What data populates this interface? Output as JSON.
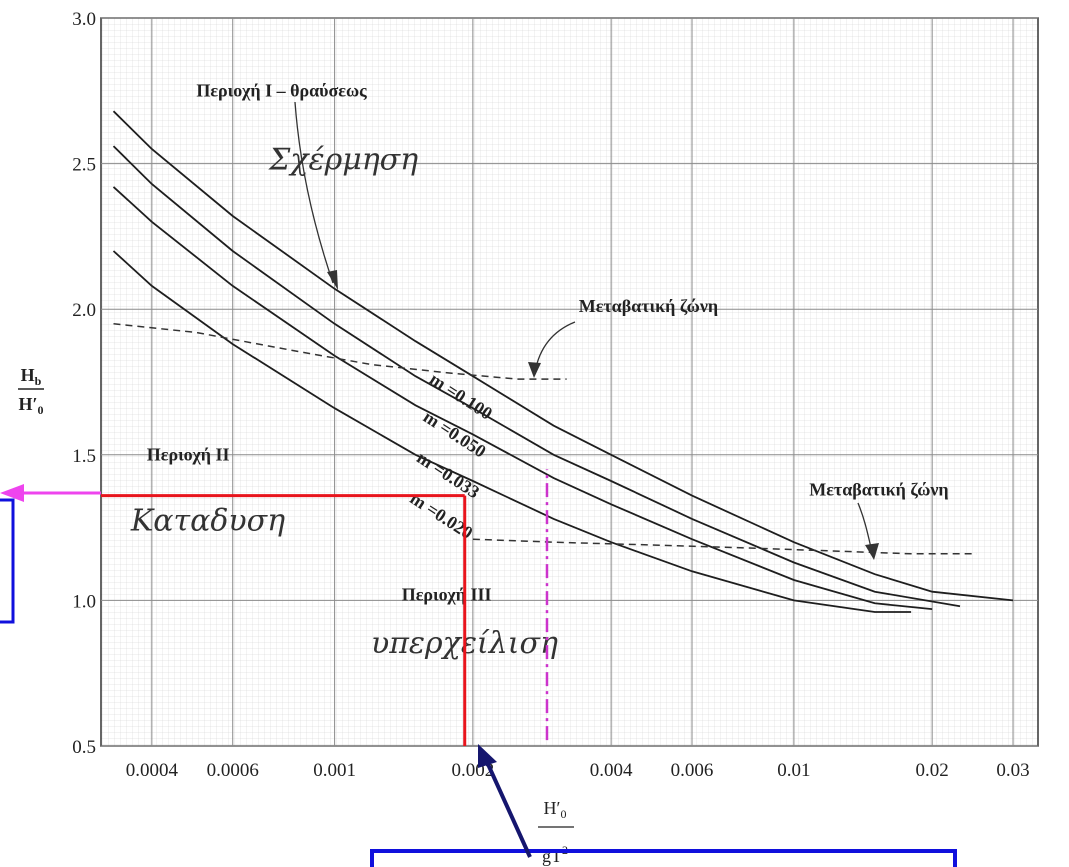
{
  "chart_data": {
    "type": "line",
    "x_scale": "log",
    "xlim": [
      0.00031,
      0.034
    ],
    "ylim": [
      0.5,
      3.0
    ],
    "grid": true,
    "x_ticks": [
      {
        "value": 0.0004,
        "label": "0.0004"
      },
      {
        "value": 0.0006,
        "label": "0.0006"
      },
      {
        "value": 0.001,
        "label": "0.001"
      },
      {
        "value": 0.002,
        "label": "0.002"
      },
      {
        "value": 0.004,
        "label": "0.004"
      },
      {
        "value": 0.006,
        "label": "0.006"
      },
      {
        "value": 0.01,
        "label": "0.01"
      },
      {
        "value": 0.02,
        "label": "0.02"
      },
      {
        "value": 0.03,
        "label": "0.03"
      }
    ],
    "y_ticks": [
      {
        "value": 0.5,
        "label": "0.5"
      },
      {
        "value": 1.0,
        "label": "1.0"
      },
      {
        "value": 1.5,
        "label": "1.5"
      },
      {
        "value": 2.0,
        "label": "2.0"
      },
      {
        "value": 2.5,
        "label": "2.5"
      },
      {
        "value": 3.0,
        "label": "3.0"
      }
    ],
    "ylabel": {
      "numerator": "H",
      "numerator_sub": "b",
      "denominator": "H′",
      "denominator_sub": "0"
    },
    "xlabel": {
      "numerator": "H′",
      "numerator_sub": "0",
      "denominator": "gT",
      "denominator_sup": "2"
    },
    "series": [
      {
        "name": "m =0.100",
        "label_pos": {
          "x": 0.0016,
          "y": 1.75
        },
        "x": [
          0.00033,
          0.0004,
          0.0006,
          0.001,
          0.0015,
          0.002,
          0.003,
          0.004,
          0.006,
          0.01,
          0.015,
          0.02,
          0.03
        ],
        "y": [
          2.68,
          2.55,
          2.32,
          2.07,
          1.89,
          1.77,
          1.6,
          1.5,
          1.36,
          1.2,
          1.09,
          1.03,
          1.0
        ]
      },
      {
        "name": "m =0.050",
        "label_pos": {
          "x": 0.00155,
          "y": 1.62
        },
        "x": [
          0.00033,
          0.0004,
          0.0006,
          0.001,
          0.0015,
          0.002,
          0.003,
          0.004,
          0.006,
          0.01,
          0.015,
          0.023
        ],
        "y": [
          2.56,
          2.43,
          2.2,
          1.95,
          1.77,
          1.66,
          1.5,
          1.41,
          1.28,
          1.13,
          1.03,
          0.98
        ]
      },
      {
        "name": "m =0.033",
        "label_pos": {
          "x": 0.0015,
          "y": 1.48
        },
        "x": [
          0.00033,
          0.0004,
          0.0006,
          0.001,
          0.0015,
          0.002,
          0.003,
          0.004,
          0.006,
          0.01,
          0.015,
          0.02
        ],
        "y": [
          2.42,
          2.3,
          2.08,
          1.84,
          1.67,
          1.57,
          1.42,
          1.33,
          1.21,
          1.07,
          0.99,
          0.97
        ]
      },
      {
        "name": "m =0.020",
        "label_pos": {
          "x": 0.00145,
          "y": 1.34
        },
        "x": [
          0.00033,
          0.0004,
          0.0006,
          0.001,
          0.0015,
          0.002,
          0.003,
          0.004,
          0.006,
          0.01,
          0.015,
          0.018
        ],
        "y": [
          2.2,
          2.08,
          1.88,
          1.66,
          1.5,
          1.41,
          1.28,
          1.2,
          1.1,
          1.0,
          0.96,
          0.96
        ]
      }
    ],
    "dashed_lines": [
      {
        "x": [
          0.00033,
          0.0005,
          0.0008,
          0.0012,
          0.0018,
          0.0025,
          0.0032
        ],
        "y": [
          1.95,
          1.92,
          1.86,
          1.81,
          1.78,
          1.76,
          1.76
        ]
      },
      {
        "x": [
          0.002,
          0.003,
          0.005,
          0.008,
          0.012,
          0.018,
          0.025
        ],
        "y": [
          1.21,
          1.2,
          1.19,
          1.18,
          1.17,
          1.16,
          1.16
        ]
      }
    ],
    "annotations": {
      "region1": {
        "text": "Περιοχή Ι – θραύσεως",
        "x": 0.0005,
        "y": 2.73
      },
      "region2": {
        "text": "Περιοχή ΙΙ",
        "x": 0.00039,
        "y": 1.48
      },
      "region3": {
        "text": "Περιοχή ΙΙΙ",
        "x": 0.0014,
        "y": 1.0
      },
      "transition1": {
        "text": "Μεταβατική ζώνη",
        "x": 0.0034,
        "y": 1.99
      },
      "transition2": {
        "text": "Μεταβατική ζώνη",
        "x": 0.0108,
        "y": 1.36
      },
      "hand1": {
        "text": "Σχέρμηση",
        "x": 0.00072,
        "y": 2.48
      },
      "hand2": {
        "text": "Καταδυση",
        "x": 0.00036,
        "y": 1.24
      },
      "hand3": {
        "text": "υπερχείλιση",
        "x": 0.0012,
        "y": 0.82
      }
    },
    "highlight": {
      "x": 0.00192,
      "y": 1.36,
      "color": "#e8141c"
    },
    "pink_line": {
      "x": 0.0029,
      "y_from": 0.52,
      "y_to": 1.45,
      "color": "#cc33cc"
    }
  },
  "overlay": {
    "pink_arrow_color": "#ee44ee",
    "navy_arrow_color": "#15166e",
    "box_color": "#1010dd"
  }
}
